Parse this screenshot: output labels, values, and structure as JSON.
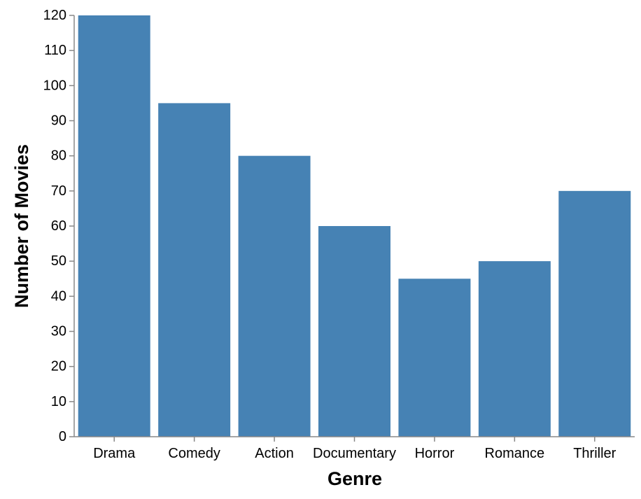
{
  "chart_data": {
    "type": "bar",
    "title": "",
    "xlabel": "Genre",
    "ylabel": "Number of Movies",
    "categories": [
      "Drama",
      "Comedy",
      "Action",
      "Documentary",
      "Horror",
      "Romance",
      "Thriller"
    ],
    "values": [
      120,
      95,
      80,
      60,
      45,
      50,
      70
    ],
    "ylim": [
      0,
      120
    ],
    "yticks": [
      0,
      10,
      20,
      30,
      40,
      50,
      60,
      70,
      80,
      90,
      100,
      110,
      120
    ],
    "grid": false,
    "bar_color": "#4682b4",
    "axis_color": "#888888"
  }
}
